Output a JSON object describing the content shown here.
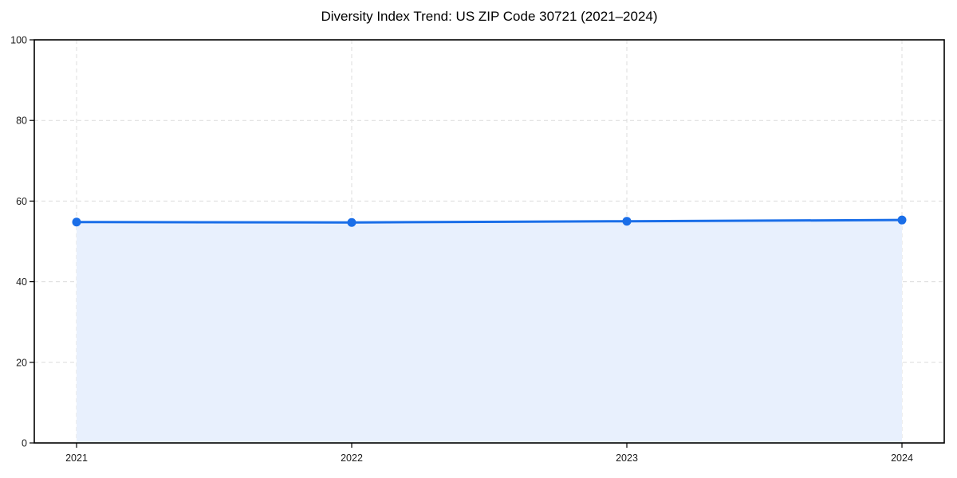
{
  "chart_data": {
    "type": "line",
    "area_fill": true,
    "title": "Diversity Index Trend: US ZIP Code 30721 (2021–2024)",
    "xlabel": "",
    "ylabel": "",
    "categories": [
      "2021",
      "2022",
      "2023",
      "2024"
    ],
    "series": [
      {
        "name": "Diversity Index",
        "values": [
          54.8,
          54.7,
          55.0,
          55.3
        ]
      }
    ],
    "ylim": [
      0,
      100
    ],
    "yticks": [
      0,
      20,
      40,
      60,
      80,
      100
    ],
    "grid": true,
    "grid_style": "dashed",
    "legend_position": "none",
    "marker": "circle",
    "colors": {
      "line": "#1a6ee8",
      "marker": "#1a6ee8",
      "area": "#e8f0fd",
      "grid": "#dcdcdc",
      "axis": "#000000",
      "tick_label": "#1b1b1b",
      "title": "#000000",
      "background": "#ffffff"
    }
  }
}
